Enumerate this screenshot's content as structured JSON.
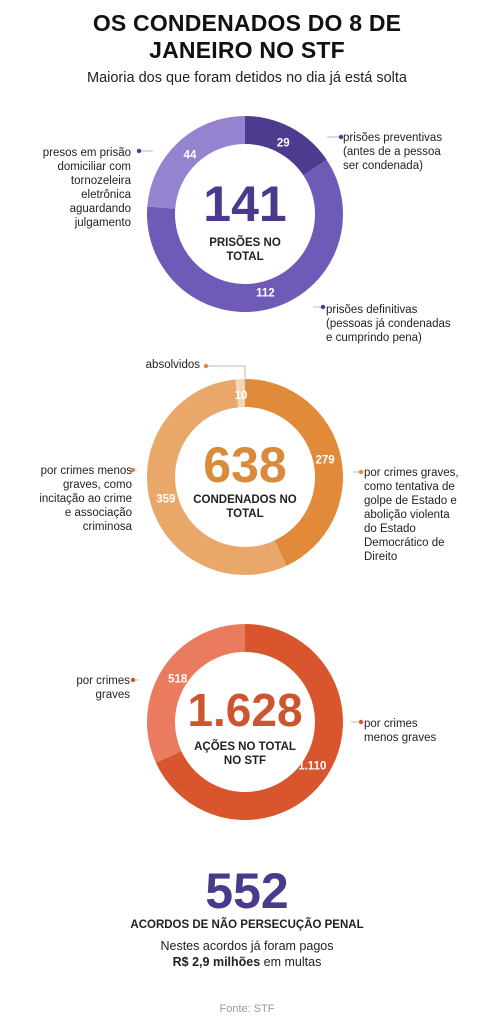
{
  "header": {
    "title": "OS CONDENADOS DO 8 DE\nJANEIRO NO STF",
    "subtitle": "Maioria dos que foram detidos no dia já está solta"
  },
  "colors": {
    "purple_dark": "#4e3a8e",
    "purple_mid": "#705ab8",
    "purple_light": "#9683cf",
    "orange_dark": "#e18a3a",
    "orange_light": "#e9a86a",
    "orange_pale": "#f2d7b6",
    "red_dark": "#d9552e",
    "red_light": "#ea7b5e",
    "num_purple": "#4b3a8c",
    "num_orange": "#d98a3a",
    "num_red": "#cc5530"
  },
  "chart_data": [
    {
      "type": "pie",
      "donut": true,
      "total_label": "141",
      "center_text": "PRISÕES NO\nTOTAL",
      "slices": [
        {
          "value": 29,
          "label": "29",
          "annotation": "prisões preventivas\n(antes de a pessoa\nser condenada)"
        },
        {
          "value": 112,
          "label": "112",
          "annotation": "prisões definitivas\n(pessoas já condenadas\ne cumprindo pena)"
        },
        {
          "value": 44,
          "label": "44",
          "annotation": "presos em prisão\ndomiciliar com\ntornozeleira\neletrônica\naguardando\njulgamento"
        }
      ]
    },
    {
      "type": "pie",
      "donut": true,
      "total_label": "638",
      "center_text": "CONDENADOS NO\nTOTAL",
      "slices": [
        {
          "value": 279,
          "label": "279",
          "annotation": "por crimes graves,\ncomo tentativa de\ngolpe de Estado e\nabolição violenta\ndo Estado\nDemocrático de\nDireito"
        },
        {
          "value": 359,
          "label": "359",
          "annotation": "por crimes menos\ngraves, como\nincitação ao crime\ne associação\ncriminosa"
        },
        {
          "value": 10,
          "label": "10",
          "annotation": "absolvidos"
        }
      ]
    },
    {
      "type": "pie",
      "donut": true,
      "total_label": "1.628",
      "center_text": "AÇÕES NO TOTAL\nNO STF",
      "slices": [
        {
          "value": 1110,
          "label": "1.110",
          "annotation": "por crimes\nmenos graves"
        },
        {
          "value": 518,
          "label": "518",
          "annotation": "por crimes\ngraves"
        }
      ]
    }
  ],
  "footer": {
    "big_number": "552",
    "title": "ACORDOS DE NÃO PERSECUÇÃO PENAL",
    "note_line1": "Nestes acordos já foram pagos",
    "note_amount": "R$ 2,9 milhões",
    "note_suffix": " em multas",
    "source": "Fonte: STF"
  }
}
